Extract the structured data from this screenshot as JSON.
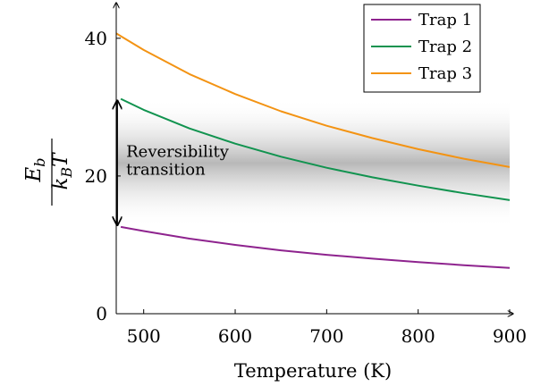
{
  "chart_data": {
    "type": "line",
    "xlabel": "Temperature (K)",
    "ylabel": {
      "numerator_main": "E",
      "numerator_sub": "b",
      "denominator_main": "k",
      "denominator_sub": "B",
      "denominator_tail": "T"
    },
    "xlim": [
      470,
      900
    ],
    "ylim": [
      0,
      44
    ],
    "xticks": [
      500,
      600,
      700,
      800,
      900
    ],
    "yticks": [
      0,
      20,
      40
    ],
    "grid": false,
    "legend_position": "top-right",
    "series": [
      {
        "name": "Trap 1",
        "color": "#8e238e",
        "x": [
          475,
          500,
          550,
          600,
          650,
          700,
          750,
          800,
          850,
          900
        ],
        "y": [
          12.6,
          12.0,
          10.9,
          10.0,
          9.2,
          8.55,
          8.0,
          7.5,
          7.05,
          6.65
        ]
      },
      {
        "name": "Trap 2",
        "color": "#11934f",
        "x": [
          475,
          500,
          550,
          600,
          650,
          700,
          750,
          800,
          850,
          900
        ],
        "y": [
          31.2,
          29.6,
          26.9,
          24.7,
          22.8,
          21.2,
          19.8,
          18.6,
          17.5,
          16.5
        ]
      },
      {
        "name": "Trap 3",
        "color": "#f39313",
        "x": [
          470,
          500,
          550,
          600,
          650,
          700,
          750,
          800,
          850,
          900
        ],
        "y": [
          40.7,
          38.3,
          34.8,
          31.9,
          29.4,
          27.3,
          25.5,
          23.9,
          22.5,
          21.3
        ]
      }
    ],
    "band": {
      "y_low": 12.6,
      "y_high": 31.2
    },
    "annotation": {
      "x": 475,
      "lines": [
        "Reversibility",
        "transition"
      ]
    }
  }
}
